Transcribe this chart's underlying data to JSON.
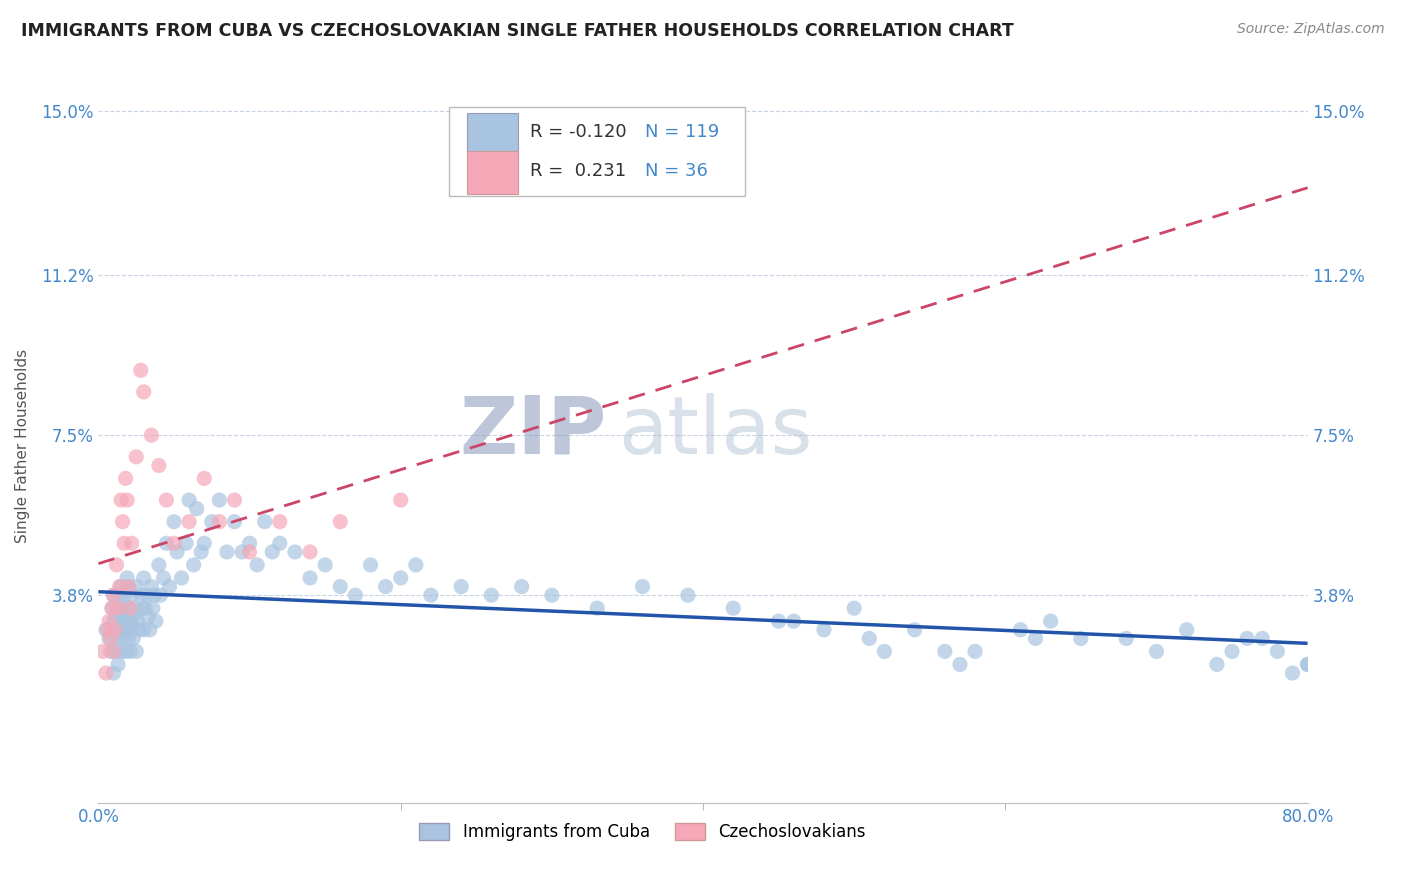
{
  "title": "IMMIGRANTS FROM CUBA VS CZECHOSLOVAKIAN SINGLE FATHER HOUSEHOLDS CORRELATION CHART",
  "source": "Source: ZipAtlas.com",
  "ylabel": "Single Father Households",
  "xlabel": "",
  "xlim": [
    0.0,
    0.8
  ],
  "ylim": [
    -0.01,
    0.155
  ],
  "yticks": [
    0.038,
    0.075,
    0.112,
    0.15
  ],
  "ytick_labels": [
    "3.8%",
    "7.5%",
    "11.2%",
    "15.0%"
  ],
  "blue_R": -0.12,
  "blue_N": 119,
  "pink_R": 0.231,
  "pink_N": 36,
  "blue_color": "#a8c4e0",
  "pink_color": "#f4a8b8",
  "blue_line_color": "#2255aa",
  "pink_line_color": "#cc4466",
  "grid_color": "#c8d4e4",
  "watermark": "ZIPatlas",
  "watermark_color": "#ccd8e8",
  "legend_label_blue": "Immigrants from Cuba",
  "legend_label_pink": "Czechoslovakians",
  "title_color": "#222222",
  "axis_label_color": "#4488cc",
  "background_color": "#ffffff",
  "blue_x": [
    0.005,
    0.007,
    0.008,
    0.009,
    0.01,
    0.01,
    0.01,
    0.011,
    0.011,
    0.012,
    0.012,
    0.013,
    0.013,
    0.014,
    0.014,
    0.015,
    0.015,
    0.015,
    0.016,
    0.016,
    0.017,
    0.017,
    0.018,
    0.018,
    0.019,
    0.019,
    0.02,
    0.02,
    0.02,
    0.021,
    0.021,
    0.022,
    0.022,
    0.023,
    0.023,
    0.024,
    0.025,
    0.025,
    0.026,
    0.027,
    0.028,
    0.029,
    0.03,
    0.03,
    0.031,
    0.032,
    0.033,
    0.034,
    0.035,
    0.036,
    0.037,
    0.038,
    0.04,
    0.041,
    0.043,
    0.045,
    0.047,
    0.05,
    0.052,
    0.055,
    0.058,
    0.06,
    0.063,
    0.065,
    0.068,
    0.07,
    0.075,
    0.08,
    0.085,
    0.09,
    0.095,
    0.1,
    0.105,
    0.11,
    0.115,
    0.12,
    0.13,
    0.14,
    0.15,
    0.16,
    0.17,
    0.18,
    0.19,
    0.2,
    0.21,
    0.22,
    0.24,
    0.26,
    0.28,
    0.3,
    0.33,
    0.36,
    0.39,
    0.42,
    0.46,
    0.5,
    0.54,
    0.58,
    0.63,
    0.68,
    0.72,
    0.75,
    0.77,
    0.79,
    0.8,
    0.45,
    0.51,
    0.56,
    0.61,
    0.65,
    0.7,
    0.74,
    0.76,
    0.78,
    0.8,
    0.48,
    0.52,
    0.57,
    0.62
  ],
  "blue_y": [
    0.03,
    0.028,
    0.025,
    0.035,
    0.032,
    0.02,
    0.038,
    0.025,
    0.03,
    0.033,
    0.028,
    0.035,
    0.022,
    0.03,
    0.038,
    0.025,
    0.032,
    0.04,
    0.028,
    0.035,
    0.03,
    0.038,
    0.025,
    0.033,
    0.03,
    0.042,
    0.028,
    0.035,
    0.04,
    0.032,
    0.025,
    0.038,
    0.03,
    0.033,
    0.028,
    0.035,
    0.04,
    0.025,
    0.032,
    0.03,
    0.038,
    0.035,
    0.042,
    0.03,
    0.035,
    0.038,
    0.033,
    0.03,
    0.04,
    0.035,
    0.038,
    0.032,
    0.045,
    0.038,
    0.042,
    0.05,
    0.04,
    0.055,
    0.048,
    0.042,
    0.05,
    0.06,
    0.045,
    0.058,
    0.048,
    0.05,
    0.055,
    0.06,
    0.048,
    0.055,
    0.048,
    0.05,
    0.045,
    0.055,
    0.048,
    0.05,
    0.048,
    0.042,
    0.045,
    0.04,
    0.038,
    0.045,
    0.04,
    0.042,
    0.045,
    0.038,
    0.04,
    0.038,
    0.04,
    0.038,
    0.035,
    0.04,
    0.038,
    0.035,
    0.032,
    0.035,
    0.03,
    0.025,
    0.032,
    0.028,
    0.03,
    0.025,
    0.028,
    0.02,
    0.022,
    0.032,
    0.028,
    0.025,
    0.03,
    0.028,
    0.025,
    0.022,
    0.028,
    0.025,
    0.022,
    0.03,
    0.025,
    0.022,
    0.028
  ],
  "pink_x": [
    0.003,
    0.005,
    0.006,
    0.007,
    0.008,
    0.009,
    0.01,
    0.01,
    0.011,
    0.012,
    0.013,
    0.014,
    0.015,
    0.016,
    0.017,
    0.018,
    0.019,
    0.02,
    0.021,
    0.022,
    0.025,
    0.028,
    0.03,
    0.035,
    0.04,
    0.045,
    0.05,
    0.06,
    0.07,
    0.08,
    0.09,
    0.1,
    0.12,
    0.14,
    0.16,
    0.2
  ],
  "pink_y": [
    0.025,
    0.02,
    0.03,
    0.032,
    0.028,
    0.035,
    0.025,
    0.038,
    0.03,
    0.045,
    0.035,
    0.04,
    0.06,
    0.055,
    0.05,
    0.065,
    0.06,
    0.04,
    0.035,
    0.05,
    0.07,
    0.09,
    0.085,
    0.075,
    0.068,
    0.06,
    0.05,
    0.055,
    0.065,
    0.055,
    0.06,
    0.048,
    0.055,
    0.048,
    0.055,
    0.06
  ],
  "pink_line_x_start": 0.0,
  "pink_line_x_end": 0.8,
  "blue_line_x_start": 0.0,
  "blue_line_x_end": 0.8
}
